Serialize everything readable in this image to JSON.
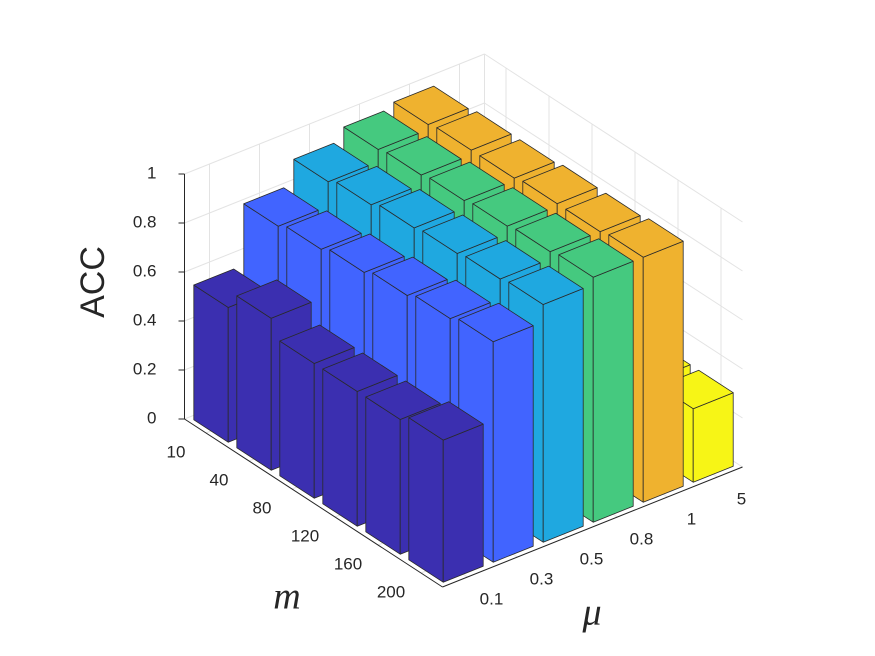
{
  "chart_data": {
    "type": "bar3",
    "xlabel": "m",
    "ylabel": "μ",
    "zlabel": "ACC",
    "categories": [
      10,
      40,
      80,
      120,
      160,
      200
    ],
    "series": [
      {
        "name": "0.1",
        "color": "#3b2fb0",
        "values": [
          0.55,
          0.62,
          0.55,
          0.55,
          0.55,
          0.58
        ]
      },
      {
        "name": "0.3",
        "color": "#4164ff",
        "values": [
          0.8,
          0.82,
          0.84,
          0.86,
          0.88,
          0.9
        ]
      },
      {
        "name": "0.5",
        "color": "#1fa8e0",
        "values": [
          0.9,
          0.92,
          0.94,
          0.95,
          0.96,
          0.97
        ]
      },
      {
        "name": "0.8",
        "color": "#45c97f",
        "values": [
          0.95,
          0.96,
          0.97,
          0.98,
          0.99,
          1.0
        ]
      },
      {
        "name": "1",
        "color": "#efb22f",
        "values": [
          0.97,
          0.98,
          0.98,
          0.99,
          0.99,
          1.0
        ]
      },
      {
        "name": "5",
        "color": "#f7f516",
        "values": [
          0.3,
          0.3,
          0.3,
          0.3,
          0.3,
          0.3
        ]
      }
    ],
    "zlim": [
      0,
      1
    ],
    "zticks": [
      0,
      0.2,
      0.4,
      0.6,
      0.8,
      1
    ],
    "grid": true
  }
}
